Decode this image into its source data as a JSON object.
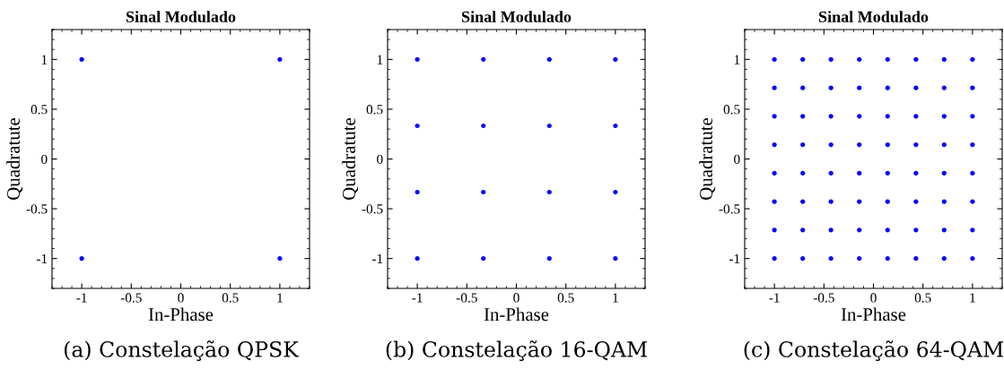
{
  "chart_data": [
    {
      "type": "scatter",
      "title": "Sinal Modulado",
      "xlabel": "In-Phase",
      "ylabel": "Quadratute",
      "annotations": [
        "(a) Constelação QPSK"
      ],
      "xlim": [
        -1.3,
        1.3
      ],
      "ylim": [
        -1.3,
        1.3
      ],
      "xticks": [
        -1,
        -0.5,
        0,
        0.5,
        1
      ],
      "yticks": [
        -1,
        -0.5,
        0,
        0.5,
        1
      ],
      "grid": false,
      "marker": "circle",
      "series": [
        {
          "color": "#0000ff",
          "x": [
            -1,
            1,
            -1,
            1
          ],
          "values": [
            1,
            1,
            -1,
            -1
          ]
        }
      ]
    },
    {
      "type": "scatter",
      "title": "Sinal Modulado",
      "xlabel": "In-Phase",
      "ylabel": "Quadratute",
      "annotations": [
        "(b) Constelação 16-QAM"
      ],
      "xlim": [
        -1.3,
        1.3
      ],
      "ylim": [
        -1.3,
        1.3
      ],
      "xticks": [
        -1,
        -0.5,
        0,
        0.5,
        1
      ],
      "yticks": [
        -1,
        -0.5,
        0,
        0.5,
        1
      ],
      "grid": false,
      "marker": "circle",
      "series": [
        {
          "color": "#0000ff",
          "x": [
            -1,
            -0.333,
            0.333,
            1,
            -1,
            -0.333,
            0.333,
            1,
            -1,
            -0.333,
            0.333,
            1,
            -1,
            -0.333,
            0.333,
            1
          ],
          "values": [
            1,
            1,
            1,
            1,
            0.333,
            0.333,
            0.333,
            0.333,
            -0.333,
            -0.333,
            -0.333,
            -0.333,
            -1,
            -1,
            -1,
            -1
          ]
        }
      ]
    },
    {
      "type": "scatter",
      "title": "Sinal Modulado",
      "xlabel": "In-Phase",
      "ylabel": "Quadratute",
      "annotations": [
        "(c) Constelação 64-QAM"
      ],
      "xlim": [
        -1.3,
        1.3
      ],
      "ylim": [
        -1.3,
        1.3
      ],
      "xticks": [
        -1,
        -0.5,
        0,
        0.5,
        1
      ],
      "yticks": [
        -1,
        -0.5,
        0,
        0.5,
        1
      ],
      "grid": false,
      "marker": "circle",
      "series": [
        {
          "color": "#0000ff",
          "x": [
            -1,
            -0.714,
            -0.429,
            -0.143,
            0.143,
            0.429,
            0.714,
            1,
            -1,
            -0.714,
            -0.429,
            -0.143,
            0.143,
            0.429,
            0.714,
            1,
            -1,
            -0.714,
            -0.429,
            -0.143,
            0.143,
            0.429,
            0.714,
            1,
            -1,
            -0.714,
            -0.429,
            -0.143,
            0.143,
            0.429,
            0.714,
            1,
            -1,
            -0.714,
            -0.429,
            -0.143,
            0.143,
            0.429,
            0.714,
            1,
            -1,
            -0.714,
            -0.429,
            -0.143,
            0.143,
            0.429,
            0.714,
            1,
            -1,
            -0.714,
            -0.429,
            -0.143,
            0.143,
            0.429,
            0.714,
            1,
            -1,
            -0.714,
            -0.429,
            -0.143,
            0.143,
            0.429,
            0.714,
            1
          ],
          "values": [
            1,
            1,
            1,
            1,
            1,
            1,
            1,
            1,
            0.714,
            0.714,
            0.714,
            0.714,
            0.714,
            0.714,
            0.714,
            0.714,
            0.429,
            0.429,
            0.429,
            0.429,
            0.429,
            0.429,
            0.429,
            0.429,
            0.143,
            0.143,
            0.143,
            0.143,
            0.143,
            0.143,
            0.143,
            0.143,
            -0.143,
            -0.143,
            -0.143,
            -0.143,
            -0.143,
            -0.143,
            -0.143,
            -0.143,
            -0.429,
            -0.429,
            -0.429,
            -0.429,
            -0.429,
            -0.429,
            -0.429,
            -0.429,
            -0.714,
            -0.714,
            -0.714,
            -0.714,
            -0.714,
            -0.714,
            -0.714,
            -0.714,
            -1,
            -1,
            -1,
            -1,
            -1,
            -1,
            -1,
            -1
          ]
        }
      ]
    }
  ]
}
